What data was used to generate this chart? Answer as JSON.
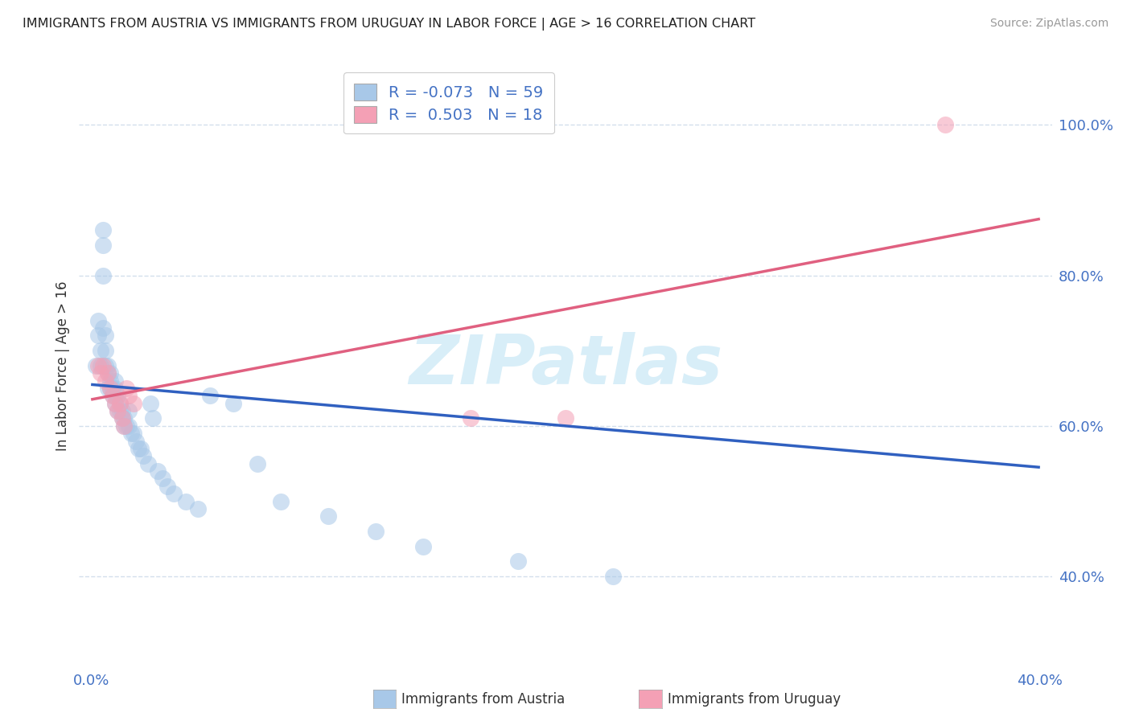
{
  "title": "IMMIGRANTS FROM AUSTRIA VS IMMIGRANTS FROM URUGUAY IN LABOR FORCE | AGE > 16 CORRELATION CHART",
  "source": "Source: ZipAtlas.com",
  "ylabel": "In Labor Force | Age > 16",
  "xlim": [
    -0.005,
    0.405
  ],
  "ylim": [
    0.28,
    1.08
  ],
  "xtick_positions": [
    0.0,
    0.05,
    0.1,
    0.15,
    0.2,
    0.25,
    0.3,
    0.35,
    0.4
  ],
  "xtick_labels": [
    "0.0%",
    "",
    "",
    "",
    "",
    "",
    "",
    "",
    "40.0%"
  ],
  "ytick_positions": [
    0.4,
    0.6,
    0.8,
    1.0
  ],
  "ytick_labels": [
    "40.0%",
    "60.0%",
    "80.0%",
    "100.0%"
  ],
  "austria_R": -0.073,
  "austria_N": 59,
  "uruguay_R": 0.503,
  "uruguay_N": 18,
  "austria_color": "#a8c8e8",
  "uruguay_color": "#f4a0b5",
  "austria_line_color": "#3060c0",
  "uruguay_line_color": "#e06080",
  "legend_austria": "Immigrants from Austria",
  "legend_uruguay": "Immigrants from Uruguay",
  "watermark_text": "ZIPatlas",
  "watermark_color": "#d8eef8",
  "background_color": "#ffffff",
  "grid_color": "#c8d8e8",
  "title_fontsize": 11.5,
  "axis_label_fontsize": 12,
  "tick_fontsize": 13,
  "legend_fontsize": 14,
  "source_fontsize": 10,
  "austria_x": [
    0.002,
    0.003,
    0.003,
    0.004,
    0.004,
    0.005,
    0.005,
    0.005,
    0.005,
    0.006,
    0.006,
    0.006,
    0.007,
    0.007,
    0.007,
    0.008,
    0.008,
    0.008,
    0.009,
    0.009,
    0.01,
    0.01,
    0.01,
    0.01,
    0.011,
    0.011,
    0.012,
    0.012,
    0.013,
    0.013,
    0.014,
    0.014,
    0.015,
    0.016,
    0.016,
    0.017,
    0.018,
    0.019,
    0.02,
    0.021,
    0.022,
    0.024,
    0.025,
    0.026,
    0.028,
    0.03,
    0.032,
    0.035,
    0.04,
    0.045,
    0.05,
    0.06,
    0.07,
    0.08,
    0.1,
    0.12,
    0.14,
    0.18,
    0.22
  ],
  "austria_y": [
    0.68,
    0.74,
    0.72,
    0.7,
    0.68,
    0.86,
    0.84,
    0.8,
    0.73,
    0.72,
    0.7,
    0.68,
    0.68,
    0.67,
    0.65,
    0.67,
    0.66,
    0.65,
    0.65,
    0.64,
    0.66,
    0.65,
    0.64,
    0.63,
    0.64,
    0.62,
    0.63,
    0.62,
    0.62,
    0.61,
    0.61,
    0.6,
    0.6,
    0.62,
    0.6,
    0.59,
    0.59,
    0.58,
    0.57,
    0.57,
    0.56,
    0.55,
    0.63,
    0.61,
    0.54,
    0.53,
    0.52,
    0.51,
    0.5,
    0.49,
    0.64,
    0.63,
    0.55,
    0.5,
    0.48,
    0.46,
    0.44,
    0.42,
    0.4
  ],
  "uruguay_x": [
    0.003,
    0.004,
    0.005,
    0.006,
    0.007,
    0.008,
    0.009,
    0.01,
    0.011,
    0.012,
    0.013,
    0.014,
    0.015,
    0.016,
    0.018,
    0.16,
    0.2,
    0.36
  ],
  "uruguay_y": [
    0.68,
    0.67,
    0.68,
    0.66,
    0.67,
    0.65,
    0.64,
    0.63,
    0.62,
    0.63,
    0.61,
    0.6,
    0.65,
    0.64,
    0.63,
    0.61,
    0.61,
    1.0
  ],
  "austria_line_x0": 0.0,
  "austria_line_x1": 0.4,
  "austria_line_y0": 0.655,
  "austria_line_y1": 0.545,
  "uruguay_line_x0": 0.0,
  "uruguay_line_x1": 0.4,
  "uruguay_line_y0": 0.635,
  "uruguay_line_y1": 0.875
}
